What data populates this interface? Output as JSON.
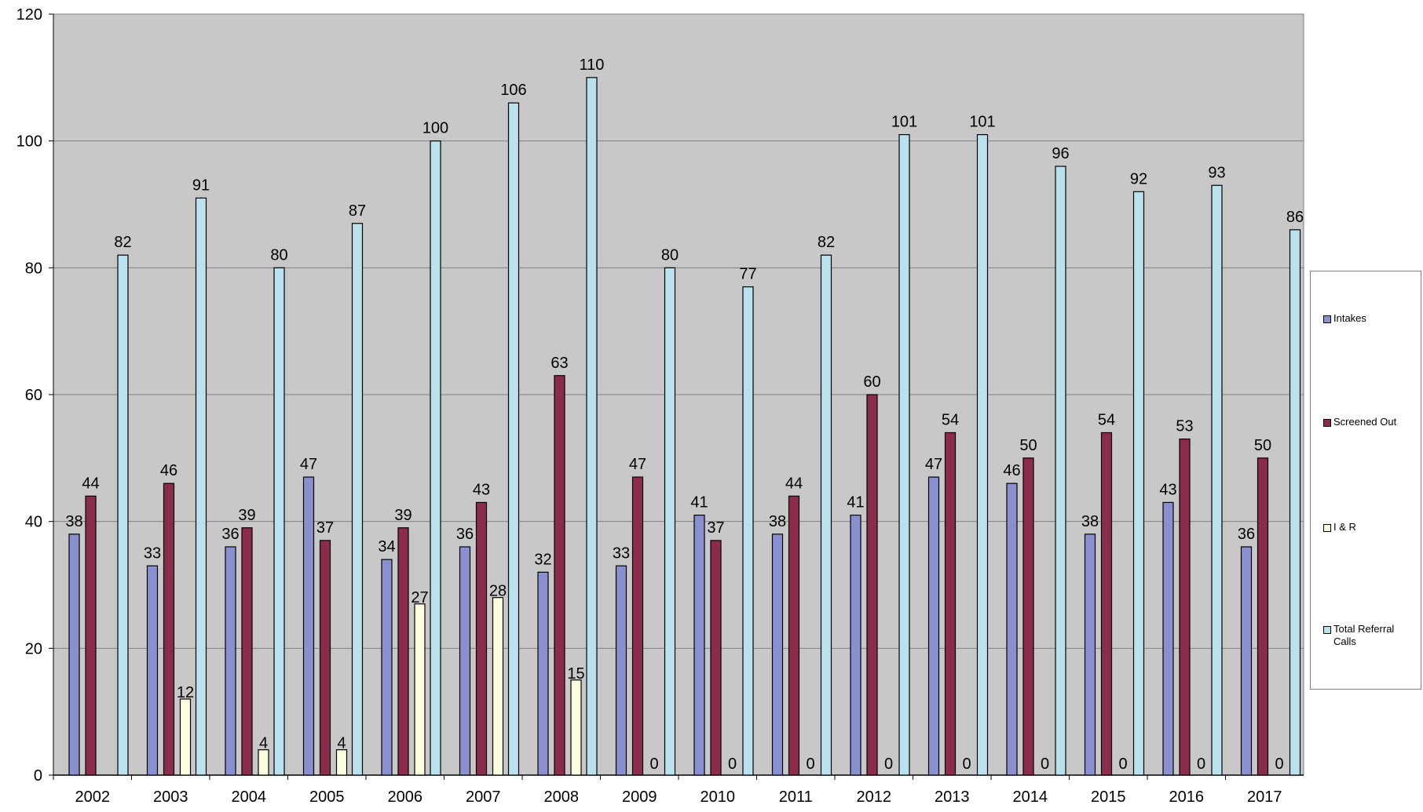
{
  "chart_data": {
    "type": "bar",
    "categories": [
      "2002",
      "2003",
      "2004",
      "2005",
      "2006",
      "2007",
      "2008",
      "2009",
      "2010",
      "2011",
      "2012",
      "2013",
      "2014",
      "2015",
      "2016",
      "2017"
    ],
    "series": [
      {
        "name": "Intakes",
        "color": "#8a8fd0",
        "values": [
          38,
          33,
          36,
          47,
          34,
          36,
          32,
          33,
          41,
          38,
          41,
          47,
          46,
          38,
          43,
          36
        ]
      },
      {
        "name": "Screened Out",
        "color": "#8b2c4d",
        "values": [
          44,
          46,
          39,
          37,
          39,
          43,
          63,
          47,
          37,
          44,
          60,
          54,
          50,
          54,
          53,
          50
        ]
      },
      {
        "name": "I & R",
        "color": "#fdfde0",
        "values": [
          0,
          12,
          4,
          4,
          27,
          28,
          15,
          0,
          0,
          0,
          0,
          0,
          0,
          0,
          0,
          0
        ]
      },
      {
        "name": "Total Referral Calls",
        "color": "#b9e2ee",
        "values": [
          82,
          91,
          80,
          87,
          100,
          106,
          110,
          80,
          77,
          82,
          101,
          101,
          96,
          92,
          93,
          86
        ]
      }
    ],
    "data_labels": [
      [
        "38",
        "33",
        "36",
        "47",
        "34",
        "36",
        "32",
        "33",
        "41",
        "38",
        "41",
        "47",
        "46",
        "38",
        "43",
        "36"
      ],
      [
        "44",
        "46",
        "39",
        "37",
        "39",
        "43",
        "63",
        "47",
        "37",
        "44",
        "60",
        "54",
        "50",
        "54",
        "53",
        "50"
      ],
      [
        "",
        "12",
        "4",
        "4",
        "27",
        "28",
        "15",
        "0",
        "0",
        "0",
        "0",
        "0",
        "0",
        "0",
        "0",
        "0"
      ],
      [
        "82",
        "91",
        "80",
        "87",
        "100",
        "106",
        "110",
        "80",
        "77",
        "82",
        "101",
        "101",
        "96",
        "92",
        "93",
        "86"
      ]
    ],
    "y_ticks": [
      "0",
      "20",
      "40",
      "60",
      "80",
      "100",
      "120"
    ],
    "ylim": [
      0,
      120
    ],
    "grid": true,
    "legend_position": "right",
    "plot_background": "#c8c8c8"
  }
}
